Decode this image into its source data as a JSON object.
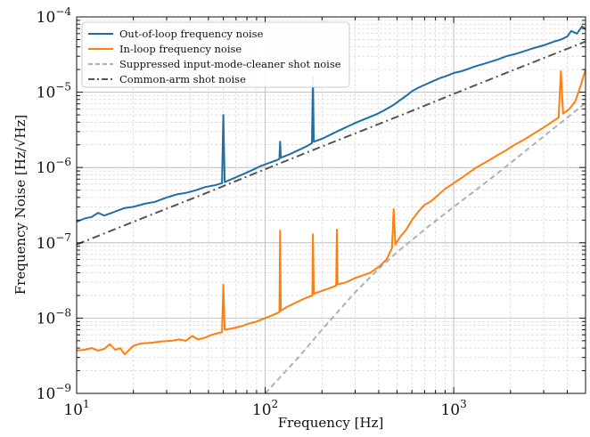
{
  "chart_data": {
    "type": "line",
    "title": "",
    "xlabel": "Frequency [Hz]",
    "ylabel": "Frequency Noise [Hz/√Hz]",
    "xscale": "log",
    "yscale": "log",
    "xlim": [
      10,
      5000
    ],
    "ylim": [
      1e-09,
      0.0001
    ],
    "x_ticks": [
      {
        "value": 10,
        "mantissa": "10",
        "exp": "1"
      },
      {
        "value": 100,
        "mantissa": "10",
        "exp": "2"
      },
      {
        "value": 1000,
        "mantissa": "10",
        "exp": "3"
      }
    ],
    "y_ticks": [
      {
        "value": 1e-09,
        "mantissa": "10",
        "exp": "−9"
      },
      {
        "value": 1e-08,
        "mantissa": "10",
        "exp": "−8"
      },
      {
        "value": 1e-07,
        "mantissa": "10",
        "exp": "−7"
      },
      {
        "value": 1e-06,
        "mantissa": "10",
        "exp": "−6"
      },
      {
        "value": 1e-05,
        "mantissa": "10",
        "exp": "−5"
      },
      {
        "value": 0.0001,
        "mantissa": "10",
        "exp": "−4"
      }
    ],
    "grid": true,
    "legend_position": "top-left",
    "series": [
      {
        "name": "Out-of-loop frequency noise",
        "color": "#1f6fa4",
        "style": "solid",
        "points": [
          [
            10,
            1.9e-07
          ],
          [
            11,
            2.1e-07
          ],
          [
            12,
            2.2e-07
          ],
          [
            13,
            2.5e-07
          ],
          [
            14,
            2.3e-07
          ],
          [
            16,
            2.6e-07
          ],
          [
            18,
            2.9e-07
          ],
          [
            20,
            3e-07
          ],
          [
            23,
            3.3e-07
          ],
          [
            26,
            3.5e-07
          ],
          [
            30,
            4e-07
          ],
          [
            34,
            4.4e-07
          ],
          [
            38,
            4.6e-07
          ],
          [
            43,
            5e-07
          ],
          [
            48,
            5.5e-07
          ],
          [
            54,
            5.8e-07
          ],
          [
            59,
            6.2e-07
          ],
          [
            60,
            5e-06
          ],
          [
            61,
            6.4e-07
          ],
          [
            68,
            7.2e-07
          ],
          [
            75,
            8e-07
          ],
          [
            85,
            9.2e-07
          ],
          [
            95,
            1.05e-06
          ],
          [
            105,
            1.15e-06
          ],
          [
            115,
            1.25e-06
          ],
          [
            119,
            1.3e-06
          ],
          [
            120,
            2.2e-06
          ],
          [
            121,
            1.35e-06
          ],
          [
            135,
            1.5e-06
          ],
          [
            150,
            1.7e-06
          ],
          [
            165,
            1.9e-06
          ],
          [
            177,
            2.1e-06
          ],
          [
            179,
            1.6e-05
          ],
          [
            181,
            2.2e-06
          ],
          [
            200,
            2.4e-06
          ],
          [
            220,
            2.7e-06
          ],
          [
            240,
            3e-06
          ],
          [
            260,
            3.3e-06
          ],
          [
            280,
            3.6e-06
          ],
          [
            300,
            3.9e-06
          ],
          [
            330,
            4.3e-06
          ],
          [
            360,
            4.7e-06
          ],
          [
            390,
            5.1e-06
          ],
          [
            420,
            5.6e-06
          ],
          [
            450,
            6.2e-06
          ],
          [
            480,
            6.8e-06
          ],
          [
            510,
            7.6e-06
          ],
          [
            540,
            8.4e-06
          ],
          [
            570,
            9.3e-06
          ],
          [
            600,
            1.03e-05
          ],
          [
            650,
            1.15e-05
          ],
          [
            700,
            1.25e-05
          ],
          [
            750,
            1.35e-05
          ],
          [
            800,
            1.45e-05
          ],
          [
            850,
            1.55e-05
          ],
          [
            900,
            1.62e-05
          ],
          [
            1000,
            1.8e-05
          ],
          [
            1100,
            1.9e-05
          ],
          [
            1200,
            2.05e-05
          ],
          [
            1300,
            2.2e-05
          ],
          [
            1500,
            2.45e-05
          ],
          [
            1700,
            2.7e-05
          ],
          [
            1900,
            3e-05
          ],
          [
            2100,
            3.2e-05
          ],
          [
            2400,
            3.55e-05
          ],
          [
            2700,
            3.9e-05
          ],
          [
            3000,
            4.2e-05
          ],
          [
            3400,
            4.7e-05
          ],
          [
            3700,
            5e-05
          ],
          [
            4000,
            5.5e-05
          ],
          [
            4200,
            6.5e-05
          ],
          [
            4500,
            6e-05
          ],
          [
            4800,
            7.5e-05
          ],
          [
            5000,
            6.8e-05
          ]
        ]
      },
      {
        "name": "In-loop frequency noise",
        "color": "#ff7f0e",
        "style": "solid",
        "points": [
          [
            10,
            3.7e-09
          ],
          [
            11,
            3.8e-09
          ],
          [
            12,
            4e-09
          ],
          [
            13,
            3.7e-09
          ],
          [
            14,
            3.9e-09
          ],
          [
            15,
            4.5e-09
          ],
          [
            16,
            3.8e-09
          ],
          [
            17,
            4e-09
          ],
          [
            18,
            3.3e-09
          ],
          [
            20,
            4.3e-09
          ],
          [
            22,
            4.6e-09
          ],
          [
            25,
            4.7e-09
          ],
          [
            28,
            4.9e-09
          ],
          [
            32,
            5e-09
          ],
          [
            35,
            5.2e-09
          ],
          [
            38,
            5e-09
          ],
          [
            41,
            5.8e-09
          ],
          [
            44,
            5.2e-09
          ],
          [
            48,
            5.5e-09
          ],
          [
            52,
            6e-09
          ],
          [
            56,
            6.3e-09
          ],
          [
            59,
            6.5e-09
          ],
          [
            60,
            2.8e-08
          ],
          [
            61,
            7e-09
          ],
          [
            65,
            7.2e-09
          ],
          [
            70,
            7.5e-09
          ],
          [
            75,
            7.8e-09
          ],
          [
            80,
            8.3e-09
          ],
          [
            90,
            9e-09
          ],
          [
            100,
            1e-08
          ],
          [
            110,
            1.1e-08
          ],
          [
            119,
            1.2e-08
          ],
          [
            120,
            1.45e-07
          ],
          [
            121,
            1.25e-08
          ],
          [
            130,
            1.4e-08
          ],
          [
            145,
            1.6e-08
          ],
          [
            160,
            1.8e-08
          ],
          [
            178,
            2e-08
          ],
          [
            179,
            1.3e-07
          ],
          [
            181,
            2.1e-08
          ],
          [
            200,
            2.3e-08
          ],
          [
            220,
            2.5e-08
          ],
          [
            238,
            2.7e-08
          ],
          [
            240,
            1.5e-07
          ],
          [
            242,
            2.8e-08
          ],
          [
            270,
            3e-08
          ],
          [
            300,
            3.4e-08
          ],
          [
            330,
            3.7e-08
          ],
          [
            360,
            4e-08
          ],
          [
            400,
            4.8e-08
          ],
          [
            440,
            6e-08
          ],
          [
            470,
            8.5e-08
          ],
          [
            480,
            2.8e-07
          ],
          [
            490,
            9.5e-08
          ],
          [
            520,
            1.2e-07
          ],
          [
            560,
            1.5e-07
          ],
          [
            600,
            2e-07
          ],
          [
            650,
            2.6e-07
          ],
          [
            700,
            3.2e-07
          ],
          [
            750,
            3.5e-07
          ],
          [
            800,
            4e-07
          ],
          [
            850,
            4.6e-07
          ],
          [
            900,
            5.2e-07
          ],
          [
            1000,
            6.2e-07
          ],
          [
            1100,
            7.3e-07
          ],
          [
            1200,
            8.5e-07
          ],
          [
            1300,
            9.8e-07
          ],
          [
            1500,
            1.2e-06
          ],
          [
            1700,
            1.45e-06
          ],
          [
            1900,
            1.7e-06
          ],
          [
            2100,
            2e-06
          ],
          [
            2400,
            2.4e-06
          ],
          [
            2700,
            2.9e-06
          ],
          [
            3000,
            3.4e-06
          ],
          [
            3300,
            4e-06
          ],
          [
            3600,
            4.6e-06
          ],
          [
            3700,
            1.9e-05
          ],
          [
            3800,
            5.2e-06
          ],
          [
            4100,
            6e-06
          ],
          [
            4400,
            7.5e-06
          ],
          [
            4700,
            1.2e-05
          ],
          [
            5000,
            2e-05
          ]
        ]
      },
      {
        "name": "Suppressed input-mode-cleaner shot noise",
        "color": "#b0b0b0",
        "style": "dashed",
        "points": [
          [
            100,
            1e-09
          ],
          [
            150,
            3e-09
          ],
          [
            200,
            7e-09
          ],
          [
            300,
            2.2e-08
          ],
          [
            400,
            4.5e-08
          ],
          [
            500,
            7.5e-08
          ],
          [
            700,
            1.5e-07
          ],
          [
            1000,
            3e-07
          ],
          [
            1500,
            6.5e-07
          ],
          [
            2000,
            1.15e-06
          ],
          [
            3000,
            2.6e-06
          ],
          [
            4000,
            4.6e-06
          ],
          [
            5000,
            7.2e-06
          ]
        ]
      },
      {
        "name": "Common-arm shot noise",
        "color": "#555555",
        "style": "dashdot",
        "points": [
          [
            10,
            9.5e-08
          ],
          [
            20,
            1.9e-07
          ],
          [
            50,
            4.7e-07
          ],
          [
            100,
            9.5e-07
          ],
          [
            200,
            1.9e-06
          ],
          [
            500,
            4.7e-06
          ],
          [
            1000,
            9.5e-06
          ],
          [
            2000,
            1.9e-05
          ],
          [
            5000,
            4.7e-05
          ]
        ]
      }
    ]
  }
}
